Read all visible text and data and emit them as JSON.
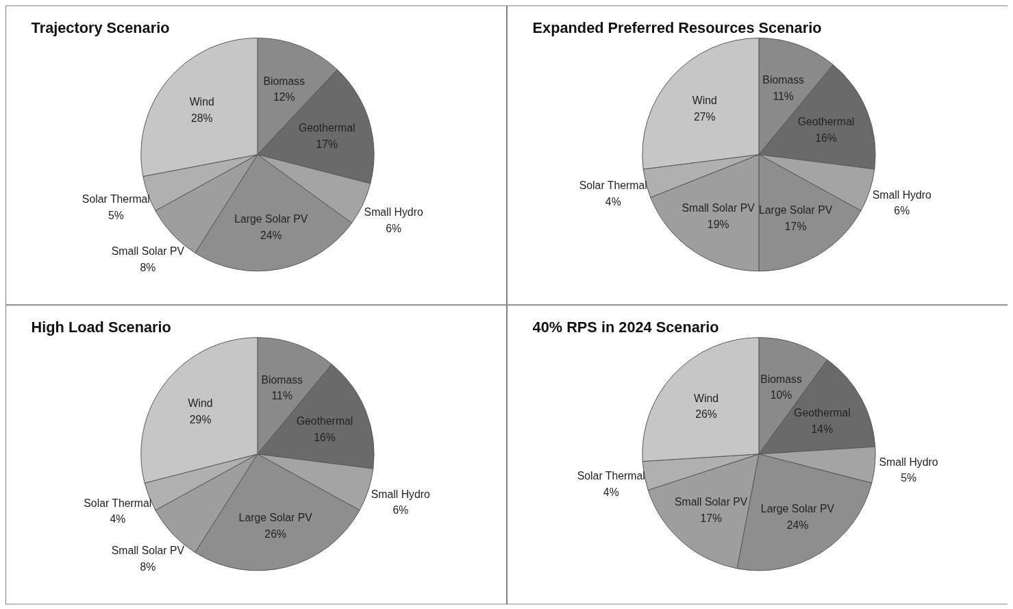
{
  "chart_data": [
    {
      "type": "pie",
      "title": "Trajectory Scenario",
      "categories": [
        "Biomass",
        "Geothermal",
        "Small Hydro",
        "Large Solar PV",
        "Small Solar PV",
        "Solar Thermal",
        "Wind"
      ],
      "values": [
        12,
        17,
        6,
        24,
        8,
        5,
        28
      ],
      "value_labels": [
        "12%",
        "17%",
        "6%",
        "24%",
        "8%",
        "5%",
        "28%"
      ],
      "colors": [
        "#8a8a8a",
        "#6a6a6a",
        "#a4a4a4",
        "#8e8e8e",
        "#9e9e9e",
        "#b0b0b0",
        "#c6c6c6"
      ]
    },
    {
      "type": "pie",
      "title": "Expanded Preferred Resources Scenario",
      "categories": [
        "Biomass",
        "Geothermal",
        "Small Hydro",
        "Large Solar PV",
        "Small Solar PV",
        "Solar Thermal",
        "Wind"
      ],
      "values": [
        11,
        16,
        6,
        17,
        19,
        4,
        27
      ],
      "value_labels": [
        "11%",
        "16%",
        "6%",
        "17%",
        "19%",
        "4%",
        "27%"
      ],
      "colors": [
        "#8a8a8a",
        "#6a6a6a",
        "#a4a4a4",
        "#8e8e8e",
        "#9e9e9e",
        "#b0b0b0",
        "#c6c6c6"
      ]
    },
    {
      "type": "pie",
      "title": "High Load Scenario",
      "categories": [
        "Biomass",
        "Geothermal",
        "Small Hydro",
        "Large Solar PV",
        "Small Solar PV",
        "Solar Thermal",
        "Wind"
      ],
      "values": [
        11,
        16,
        6,
        26,
        8,
        4,
        29
      ],
      "value_labels": [
        "11%",
        "16%",
        "6%",
        "26%",
        "8%",
        "4%",
        "29%"
      ],
      "colors": [
        "#8a8a8a",
        "#6a6a6a",
        "#a4a4a4",
        "#8e8e8e",
        "#9e9e9e",
        "#b0b0b0",
        "#c6c6c6"
      ]
    },
    {
      "type": "pie",
      "title": "40% RPS in 2024 Scenario",
      "categories": [
        "Biomass",
        "Geothermal",
        "Small Hydro",
        "Large Solar PV",
        "Small Solar PV",
        "Solar Thermal",
        "Wind"
      ],
      "values": [
        10,
        14,
        5,
        24,
        17,
        4,
        26
      ],
      "value_labels": [
        "10%",
        "14%",
        "5%",
        "24%",
        "17%",
        "4%",
        "26%"
      ],
      "colors": [
        "#8a8a8a",
        "#6a6a6a",
        "#a4a4a4",
        "#8e8e8e",
        "#9e9e9e",
        "#b0b0b0",
        "#c6c6c6"
      ]
    }
  ]
}
